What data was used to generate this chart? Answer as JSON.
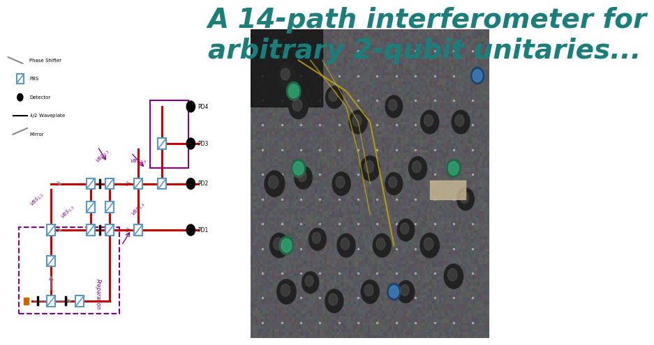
{
  "title_line1": "A 14-path interferometer for",
  "title_line2": "arbitrary 2-qubit unitaries...",
  "title_color": "#1a7f7a",
  "title_fontsize": 28,
  "title_fontstyle": "italic",
  "title_fontweight": "bold",
  "background_color": "#ffffff",
  "diagram_bg": "#f8f8f8"
}
